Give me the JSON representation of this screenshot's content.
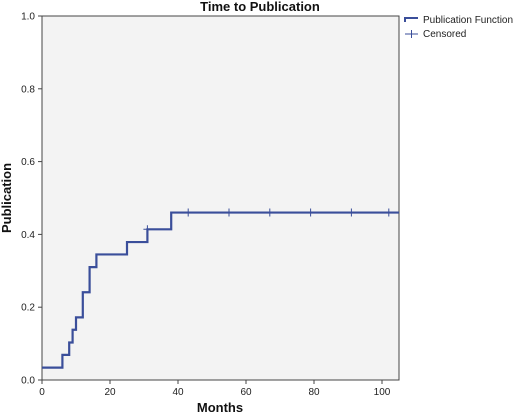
{
  "chart_data": {
    "type": "line",
    "title": "Time to Publication",
    "xlabel": "Months",
    "ylabel": "Publication",
    "xlim": [
      0,
      105
    ],
    "ylim": [
      0,
      1.0
    ],
    "x_ticks": [
      0,
      20,
      40,
      60,
      80,
      100
    ],
    "y_ticks": [
      0.0,
      0.2,
      0.4,
      0.6,
      0.8,
      1.0
    ],
    "x_tick_labels": [
      "0",
      "20",
      "40",
      "60",
      "80",
      "100"
    ],
    "y_tick_labels": [
      "0.0",
      "0.2",
      "0.4",
      "0.6",
      "0.8",
      "1.0"
    ],
    "grid": false,
    "legend_position": "top-right",
    "legend": [
      "Publication Function",
      "Censored"
    ],
    "series": [
      {
        "name": "Publication Function",
        "color": "#3a4e9a",
        "step": true,
        "x": [
          0,
          6,
          8,
          9,
          10,
          12,
          14,
          16,
          25,
          31,
          38,
          105
        ],
        "y": [
          0.034,
          0.069,
          0.103,
          0.138,
          0.172,
          0.241,
          0.31,
          0.345,
          0.379,
          0.414,
          0.46,
          0.46
        ]
      },
      {
        "name": "Censored",
        "color": "#3a4e9a",
        "marker": "plus",
        "x": [
          31,
          43,
          55,
          67,
          79,
          91,
          102
        ],
        "y": [
          0.414,
          0.46,
          0.46,
          0.46,
          0.46,
          0.46,
          0.46
        ]
      }
    ]
  }
}
